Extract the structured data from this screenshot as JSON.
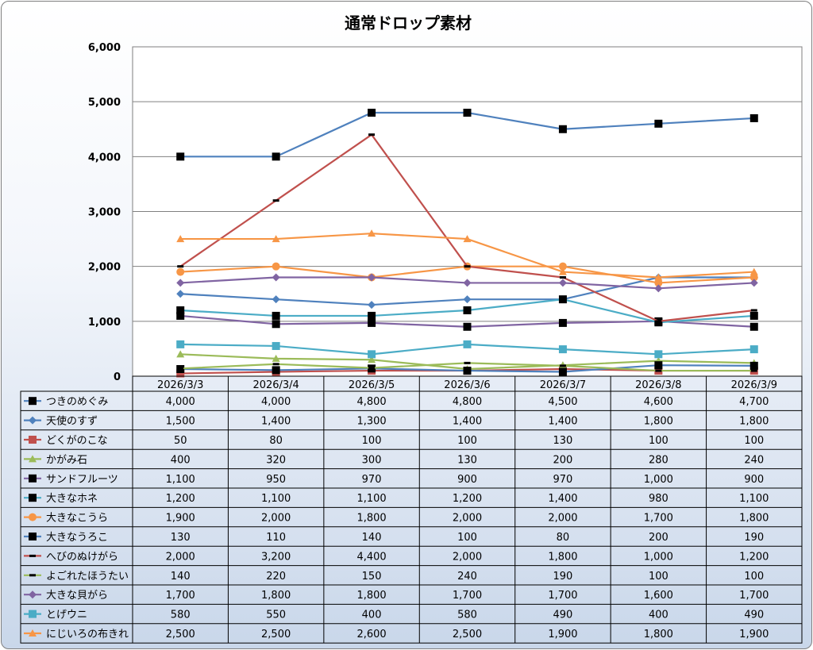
{
  "chart_data": {
    "type": "line",
    "title": "通常ドロップ素材",
    "categories": [
      "2026/3/3",
      "2026/3/4",
      "2026/3/5",
      "2026/3/6",
      "2026/3/7",
      "2026/3/8",
      "2026/3/9"
    ],
    "ylim": [
      0,
      6000
    ],
    "yticks": [
      "0",
      "1,000",
      "2,000",
      "3,000",
      "4,000",
      "5,000",
      "6,000"
    ],
    "grid": true,
    "legend": "data-table",
    "series": [
      {
        "name": "つきのめぐみ",
        "color": "#4f81bd",
        "marker": "square-black",
        "values": [
          4000,
          4000,
          4800,
          4800,
          4500,
          4600,
          4700
        ],
        "labels": [
          "4,000",
          "4,000",
          "4,800",
          "4,800",
          "4,500",
          "4,600",
          "4,700"
        ]
      },
      {
        "name": "天使のすず",
        "color": "#4f81bd",
        "marker": "diamond",
        "values": [
          1500,
          1400,
          1300,
          1400,
          1400,
          1800,
          1800
        ],
        "labels": [
          "1,500",
          "1,400",
          "1,300",
          "1,400",
          "1,400",
          "1,800",
          "1,800"
        ]
      },
      {
        "name": "どくがのこな",
        "color": "#c0504d",
        "marker": "square",
        "values": [
          50,
          80,
          100,
          100,
          130,
          100,
          100
        ],
        "labels": [
          "50",
          "80",
          "100",
          "100",
          "130",
          "100",
          "100"
        ]
      },
      {
        "name": "かがみ石",
        "color": "#9bbb59",
        "marker": "triangle",
        "values": [
          400,
          320,
          300,
          130,
          200,
          280,
          240
        ],
        "labels": [
          "400",
          "320",
          "300",
          "130",
          "200",
          "280",
          "240"
        ]
      },
      {
        "name": "サンドフルーツ",
        "color": "#8064a2",
        "marker": "square-black",
        "values": [
          1100,
          950,
          970,
          900,
          970,
          1000,
          900
        ],
        "labels": [
          "1,100",
          "950",
          "970",
          "900",
          "970",
          "1,000",
          "900"
        ]
      },
      {
        "name": "大きなホネ",
        "color": "#4bacc6",
        "marker": "square-black",
        "values": [
          1200,
          1100,
          1100,
          1200,
          1400,
          980,
          1100
        ],
        "labels": [
          "1,200",
          "1,100",
          "1,100",
          "1,200",
          "1,400",
          "980",
          "1,100"
        ]
      },
      {
        "name": "大きなこうら",
        "color": "#f79646",
        "marker": "circle",
        "values": [
          1900,
          2000,
          1800,
          2000,
          2000,
          1700,
          1800
        ],
        "labels": [
          "1,900",
          "2,000",
          "1,800",
          "2,000",
          "2,000",
          "1,700",
          "1,800"
        ]
      },
      {
        "name": "大きなうろこ",
        "color": "#4f81bd",
        "marker": "square-black",
        "values": [
          130,
          110,
          140,
          100,
          80,
          200,
          190
        ],
        "labels": [
          "130",
          "110",
          "140",
          "100",
          "80",
          "200",
          "190"
        ]
      },
      {
        "name": "へびのぬけがら",
        "color": "#c0504d",
        "marker": "dash",
        "values": [
          2000,
          3200,
          4400,
          2000,
          1800,
          1000,
          1200
        ],
        "labels": [
          "2,000",
          "3,200",
          "4,400",
          "2,000",
          "1,800",
          "1,000",
          "1,200"
        ]
      },
      {
        "name": "よごれたほうたい",
        "color": "#9bbb59",
        "marker": "dash",
        "values": [
          140,
          220,
          150,
          240,
          190,
          100,
          100
        ],
        "labels": [
          "140",
          "220",
          "150",
          "240",
          "190",
          "100",
          "100"
        ]
      },
      {
        "name": "大きな貝がら",
        "color": "#8064a2",
        "marker": "diamond",
        "values": [
          1700,
          1800,
          1800,
          1700,
          1700,
          1600,
          1700
        ],
        "labels": [
          "1,700",
          "1,800",
          "1,800",
          "1,700",
          "1,700",
          "1,600",
          "1,700"
        ]
      },
      {
        "name": "とげウニ",
        "color": "#4bacc6",
        "marker": "square",
        "values": [
          580,
          550,
          400,
          580,
          490,
          400,
          490
        ],
        "labels": [
          "580",
          "550",
          "400",
          "580",
          "490",
          "400",
          "490"
        ]
      },
      {
        "name": "にじいろの布きれ",
        "color": "#f79646",
        "marker": "triangle",
        "values": [
          2500,
          2500,
          2600,
          2500,
          1900,
          1800,
          1900
        ],
        "labels": [
          "2,500",
          "2,500",
          "2,600",
          "2,500",
          "1,900",
          "1,800",
          "1,900"
        ]
      }
    ]
  }
}
